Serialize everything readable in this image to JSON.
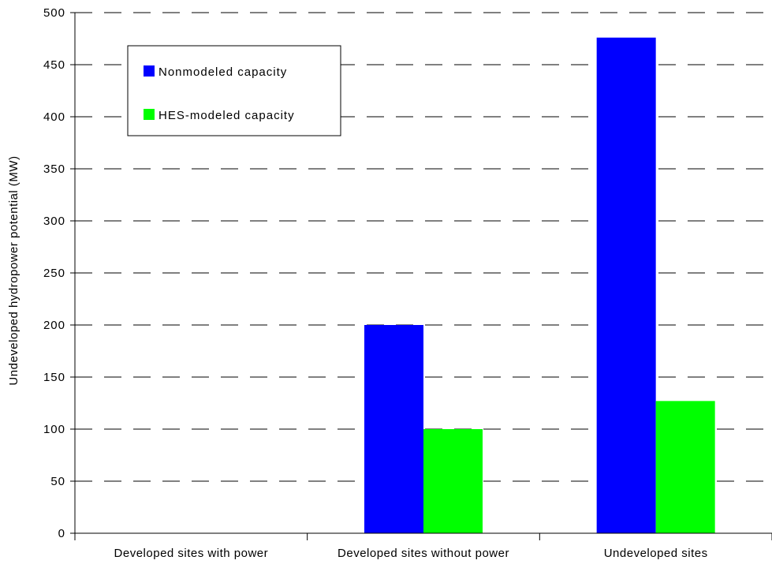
{
  "chart_data": {
    "type": "bar",
    "categories": [
      "Developed sites with power",
      "Developed sites without power",
      "Undeveloped sites"
    ],
    "series": [
      {
        "name": "Nonmodeled capacity",
        "values": [
          0,
          200,
          476
        ],
        "color": "#0000ff"
      },
      {
        "name": "HES-modeled capacity",
        "values": [
          0,
          100,
          127
        ],
        "color": "#00ff00"
      }
    ],
    "xlabel": "",
    "ylabel": "Undeveloped hydropower potential (MW)",
    "ylim": [
      0,
      500
    ],
    "yticks": [
      "0",
      "50",
      "100",
      "150",
      "200",
      "250",
      "300",
      "350",
      "400",
      "450",
      "500"
    ],
    "grid": true,
    "legend_position": "top-left"
  }
}
